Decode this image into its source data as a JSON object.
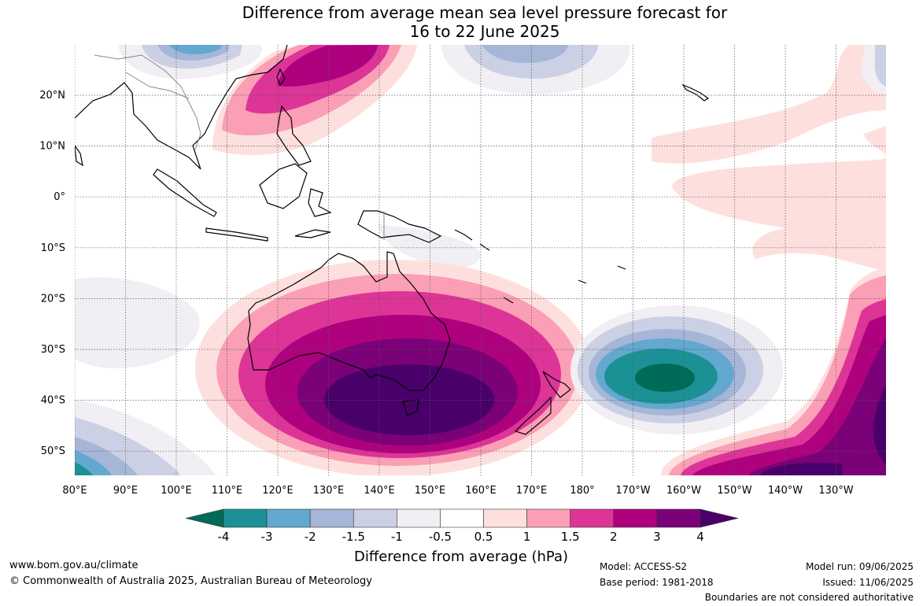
{
  "title_line1": "Difference from average mean sea level pressure forecast for",
  "title_line2": "16 to 22 June 2025",
  "lat_labels": [
    "20°N",
    "10°N",
    "0°",
    "10°S",
    "20°S",
    "30°S",
    "40°S",
    "50°S"
  ],
  "lon_labels": [
    "80°E",
    "90°E",
    "100°E",
    "110°E",
    "120°E",
    "130°E",
    "140°E",
    "150°E",
    "160°E",
    "170°E",
    "180°",
    "170°W",
    "160°W",
    "150°W",
    "140°W",
    "130°W"
  ],
  "colorbar": {
    "title": "Difference from average (hPa)",
    "labels": [
      "-4",
      "-3",
      "-2",
      "-1.5",
      "-1",
      "-0.5",
      "0.5",
      "1",
      "1.5",
      "2",
      "3",
      "4"
    ],
    "colors": [
      "#006b57",
      "#1b9196",
      "#63a8cf",
      "#a5b6d7",
      "#ccd0e4",
      "#f1eef4",
      "#ffffff",
      "#fde0dd",
      "#fa9fb5",
      "#dd3497",
      "#ae017e",
      "#7a0177",
      "#49006a"
    ]
  },
  "footer": {
    "website": "www.bom.gov.au/climate",
    "copyright": "© Commonwealth of Australia 2025, Australian Bureau of Meteorology",
    "model": "Model: ACCESS-S2",
    "base_period": "Base period: 1981-2018",
    "model_run": "Model run: 09/06/2025",
    "issued": "Issued: 11/06/2025",
    "boundaries": "Boundaries are not considered authoritative"
  }
}
